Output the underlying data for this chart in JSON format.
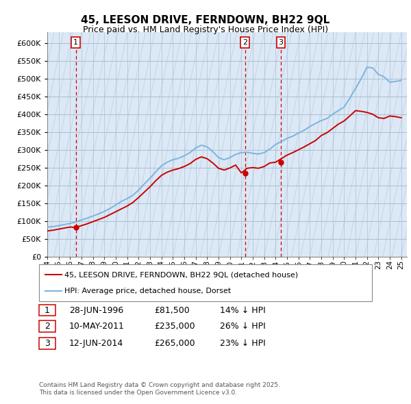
{
  "title": "45, LEESON DRIVE, FERNDOWN, BH22 9QL",
  "subtitle": "Price paid vs. HM Land Registry's House Price Index (HPI)",
  "ylim": [
    0,
    630000
  ],
  "yticks": [
    0,
    50000,
    100000,
    150000,
    200000,
    250000,
    300000,
    350000,
    400000,
    450000,
    500000,
    550000,
    600000
  ],
  "background_color": "#ffffff",
  "chart_bg_color": "#dce8f5",
  "hatch_color": "#b8cfe0",
  "grid_color": "#b0c4d8",
  "hpi_color": "#7ab4e0",
  "price_color": "#cc0000",
  "annotation_box_color": "#cc0000",
  "hpi_line": {
    "x": [
      1994.0,
      1994.5,
      1995.0,
      1995.5,
      1996.0,
      1996.5,
      1997.0,
      1997.5,
      1998.0,
      1998.5,
      1999.0,
      1999.5,
      2000.0,
      2000.5,
      2001.0,
      2001.5,
      2002.0,
      2002.5,
      2003.0,
      2003.5,
      2004.0,
      2004.5,
      2005.0,
      2005.5,
      2006.0,
      2006.5,
      2007.0,
      2007.5,
      2008.0,
      2008.5,
      2009.0,
      2009.5,
      2010.0,
      2010.5,
      2011.0,
      2011.5,
      2012.0,
      2012.5,
      2013.0,
      2013.5,
      2014.0,
      2014.5,
      2015.0,
      2015.5,
      2016.0,
      2016.5,
      2017.0,
      2017.5,
      2018.0,
      2018.5,
      2019.0,
      2019.5,
      2020.0,
      2020.5,
      2021.0,
      2021.5,
      2022.0,
      2022.5,
      2023.0,
      2023.5,
      2024.0,
      2024.5,
      2025.0
    ],
    "y": [
      83000,
      84000,
      87000,
      90000,
      93000,
      97000,
      103000,
      108000,
      114000,
      120000,
      127000,
      135000,
      145000,
      155000,
      163000,
      172000,
      187000,
      204000,
      220000,
      238000,
      255000,
      265000,
      272000,
      276000,
      283000,
      292000,
      305000,
      313000,
      308000,
      295000,
      278000,
      272000,
      278000,
      287000,
      292000,
      293000,
      290000,
      288000,
      292000,
      302000,
      315000,
      323000,
      332000,
      338000,
      347000,
      355000,
      365000,
      374000,
      382000,
      388000,
      400000,
      410000,
      420000,
      445000,
      472000,
      500000,
      532000,
      530000,
      512000,
      505000,
      490000,
      492000,
      495000
    ]
  },
  "price_line": {
    "x": [
      1994.0,
      1994.5,
      1995.0,
      1995.5,
      1996.0,
      1996.5,
      1997.0,
      1997.5,
      1998.0,
      1998.5,
      1999.0,
      1999.5,
      2000.0,
      2000.5,
      2001.0,
      2001.5,
      2002.0,
      2002.5,
      2003.0,
      2003.5,
      2004.0,
      2004.5,
      2005.0,
      2005.5,
      2006.0,
      2006.5,
      2007.0,
      2007.5,
      2008.0,
      2008.5,
      2009.0,
      2009.5,
      2010.0,
      2010.5,
      2011.0,
      2011.5,
      2012.0,
      2012.5,
      2013.0,
      2013.5,
      2014.0,
      2014.5,
      2015.0,
      2015.5,
      2016.0,
      2016.5,
      2017.0,
      2017.5,
      2018.0,
      2018.5,
      2019.0,
      2019.5,
      2020.0,
      2020.5,
      2021.0,
      2021.5,
      2022.0,
      2022.5,
      2023.0,
      2023.5,
      2024.0,
      2024.5,
      2025.0
    ],
    "y": [
      72000,
      74000,
      77000,
      80000,
      83000,
      81500,
      87000,
      92000,
      98000,
      104000,
      110000,
      118000,
      126000,
      134000,
      142000,
      152000,
      166000,
      181000,
      196000,
      213000,
      228000,
      237000,
      243000,
      247000,
      253000,
      261000,
      273000,
      280000,
      275000,
      263000,
      248000,
      243000,
      249000,
      257000,
      235000,
      248000,
      250000,
      248000,
      253000,
      263000,
      265000,
      275000,
      285000,
      292000,
      300000,
      308000,
      317000,
      326000,
      340000,
      348000,
      360000,
      372000,
      381000,
      395000,
      410000,
      408000,
      405000,
      400000,
      390000,
      388000,
      395000,
      393000,
      390000
    ]
  },
  "sales": [
    {
      "num": "1",
      "year": 1996.5,
      "price": 81500,
      "date": "28-JUN-1996",
      "hpi_pct": "14% ↓ HPI"
    },
    {
      "num": "2",
      "year": 2011.33,
      "price": 235000,
      "date": "10-MAY-2011",
      "hpi_pct": "26% ↓ HPI"
    },
    {
      "num": "3",
      "year": 2014.45,
      "price": 265000,
      "date": "12-JUN-2014",
      "hpi_pct": "23% ↓ HPI"
    }
  ],
  "legend_line1": "45, LEESON DRIVE, FERNDOWN, BH22 9QL (detached house)",
  "legend_line2": "HPI: Average price, detached house, Dorset",
  "table_rows": [
    [
      "1",
      "28-JUN-1996",
      "£81,500",
      "14% ↓ HPI"
    ],
    [
      "2",
      "10-MAY-2011",
      "£235,000",
      "26% ↓ HPI"
    ],
    [
      "3",
      "12-JUN-2014",
      "£265,000",
      "23% ↓ HPI"
    ]
  ],
  "footnote1": "Contains HM Land Registry data © Crown copyright and database right 2025.",
  "footnote2": "This data is licensed under the Open Government Licence v3.0.",
  "xmin": 1994,
  "xmax": 2025.5
}
